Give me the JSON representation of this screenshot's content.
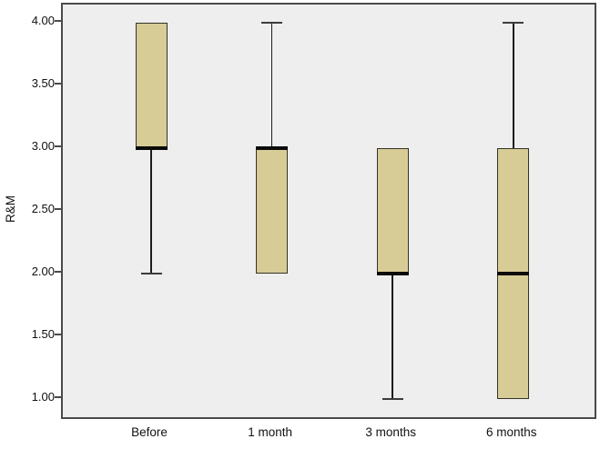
{
  "chart": {
    "ylabel": "R&M"
  },
  "chart_data": {
    "type": "boxplot",
    "title": "",
    "xlabel": "",
    "ylabel": "R&M",
    "categories": [
      "Before",
      "1 month",
      "3 months",
      "6 months"
    ],
    "yticks": [
      4.0,
      3.5,
      3.0,
      2.5,
      2.0,
      1.5,
      1.0
    ],
    "ytick_labels": [
      "4.00",
      "3.50",
      "3.00",
      "2.50",
      "2.00",
      "1.50",
      "1.00"
    ],
    "ylim": [
      0.83,
      4.15
    ],
    "grid": false,
    "legend": false,
    "boxes": [
      {
        "category": "Before",
        "whisker_low": 2.0,
        "q1": 3.0,
        "median": 3.0,
        "q3": 4.0,
        "whisker_high": 4.0
      },
      {
        "category": "1 month",
        "whisker_low": 2.0,
        "q1": 2.0,
        "median": 3.0,
        "q3": 3.0,
        "whisker_high": 4.0
      },
      {
        "category": "3 months",
        "whisker_low": 1.0,
        "q1": 2.0,
        "median": 2.0,
        "q3": 3.0,
        "whisker_high": 3.0
      },
      {
        "category": "6 months",
        "whisker_low": 1.0,
        "q1": 1.0,
        "median": 2.0,
        "q3": 3.0,
        "whisker_high": 4.0
      }
    ],
    "colors": {
      "box_fill": "#d8cc96",
      "box_border": "#333328",
      "median": "#0a0a0a",
      "whisker": "#1c1c1c",
      "plot_background": "#eeeeee",
      "frame": "#4a4a4a",
      "text": "#111111"
    }
  }
}
